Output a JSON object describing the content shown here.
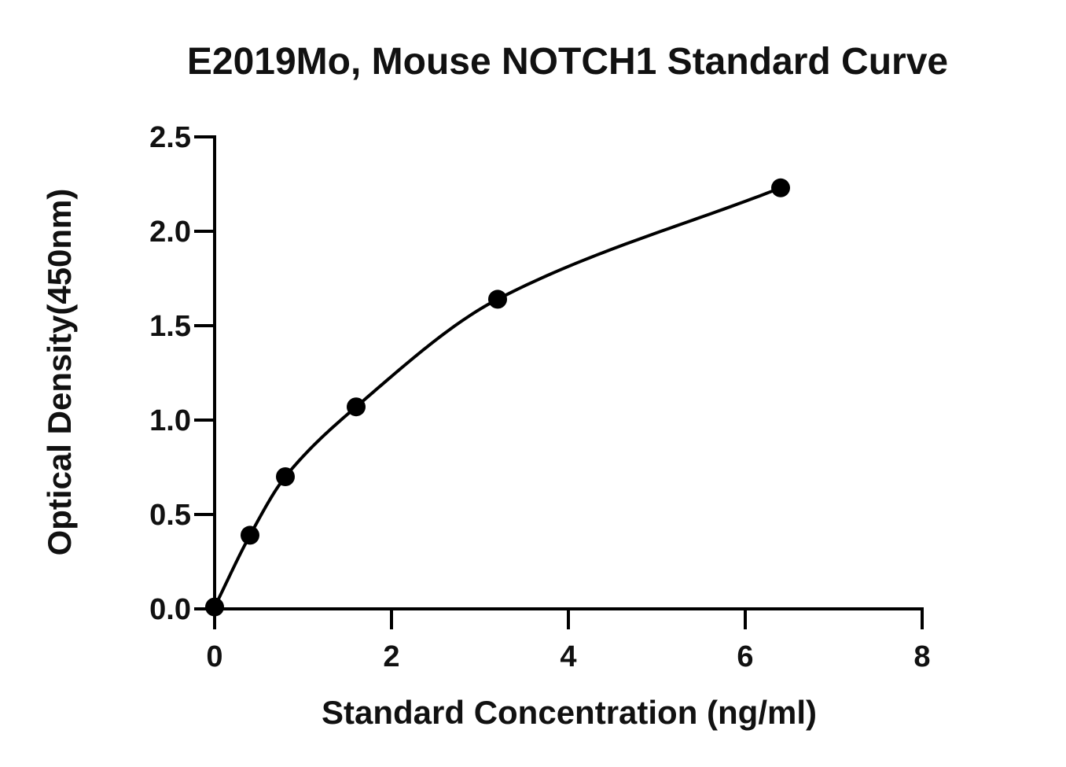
{
  "chart_data": {
    "type": "scatter",
    "title": "E2019Mo, Mouse NOTCH1 Standard Curve",
    "xlabel": "Standard Concentration (ng/ml)",
    "ylabel": "Optical Density(450nm)",
    "xlim": [
      0,
      8
    ],
    "ylim": [
      0,
      2.5
    ],
    "x_ticks": [
      0,
      2,
      4,
      6,
      8
    ],
    "y_ticks": [
      0.0,
      0.5,
      1.0,
      1.5,
      2.0,
      2.5
    ],
    "x_tick_labels": [
      "0",
      "2",
      "4",
      "6",
      "8"
    ],
    "y_tick_labels": [
      "0.0",
      "0.5",
      "1.0",
      "1.5",
      "2.0",
      "2.5"
    ],
    "grid": false,
    "legend": "none",
    "fitted_curve": true,
    "series": [
      {
        "x": [
          0,
          0.4,
          0.8,
          1.6,
          3.2,
          6.4
        ],
        "y": [
          0.01,
          0.39,
          0.7,
          1.07,
          1.64,
          2.23
        ]
      }
    ],
    "colors": {
      "points": "#000000",
      "curve": "#000000",
      "axes": "#000000"
    }
  }
}
